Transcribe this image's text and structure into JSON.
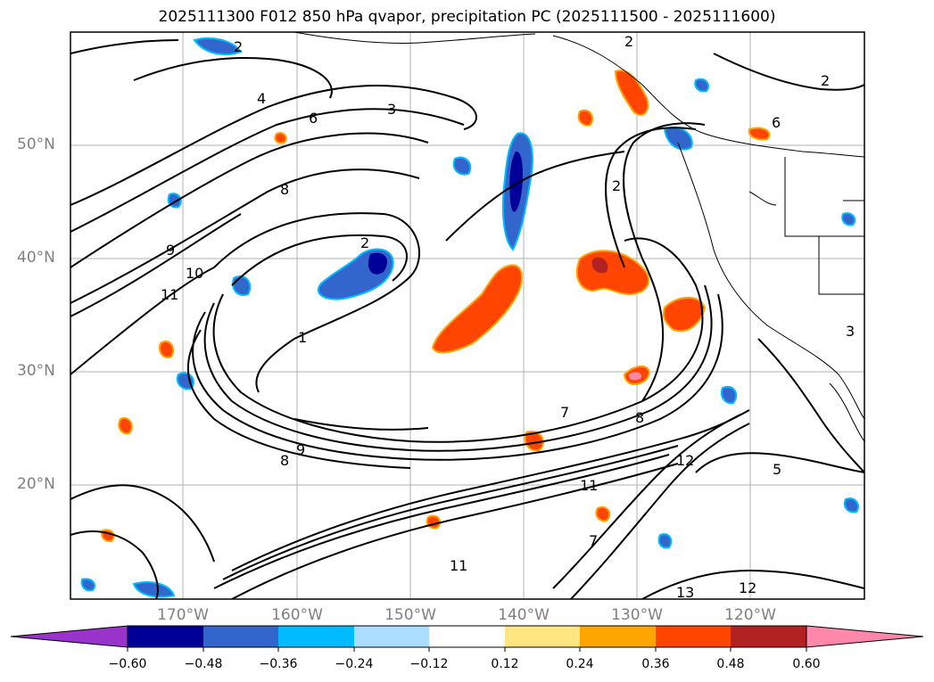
{
  "title": "2025111300 F012 850 hPa qvapor, precipitation PC (2025111500 - 2025111600)",
  "lat_labels": [
    "50°N",
    "40°N",
    "30°N",
    "20°N"
  ],
  "lon_labels": [
    "170°W",
    "160°W",
    "150°W",
    "140°W",
    "130°W",
    "120°W"
  ],
  "colorbar": {
    "ticks": [
      "−0.60",
      "−0.48",
      "−0.36",
      "−0.24",
      "−0.12",
      "0.12",
      "0.24",
      "0.36",
      "0.48",
      "0.60"
    ],
    "colors": [
      "#9933cc",
      "#000099",
      "#3366cc",
      "#00bbff",
      "#aaddff",
      "#ffffff",
      "#ffe680",
      "#ffa500",
      "#ff4500",
      "#b22222",
      "#ff88aa"
    ]
  },
  "contour_labels": [
    "2",
    "2",
    "2",
    "2",
    "2",
    "3",
    "3",
    "4",
    "5",
    "6",
    "6",
    "7",
    "8",
    "8",
    "8",
    "9",
    "9",
    "10",
    "11",
    "11",
    "11",
    "12",
    "12",
    "13",
    "1",
    "7"
  ]
}
